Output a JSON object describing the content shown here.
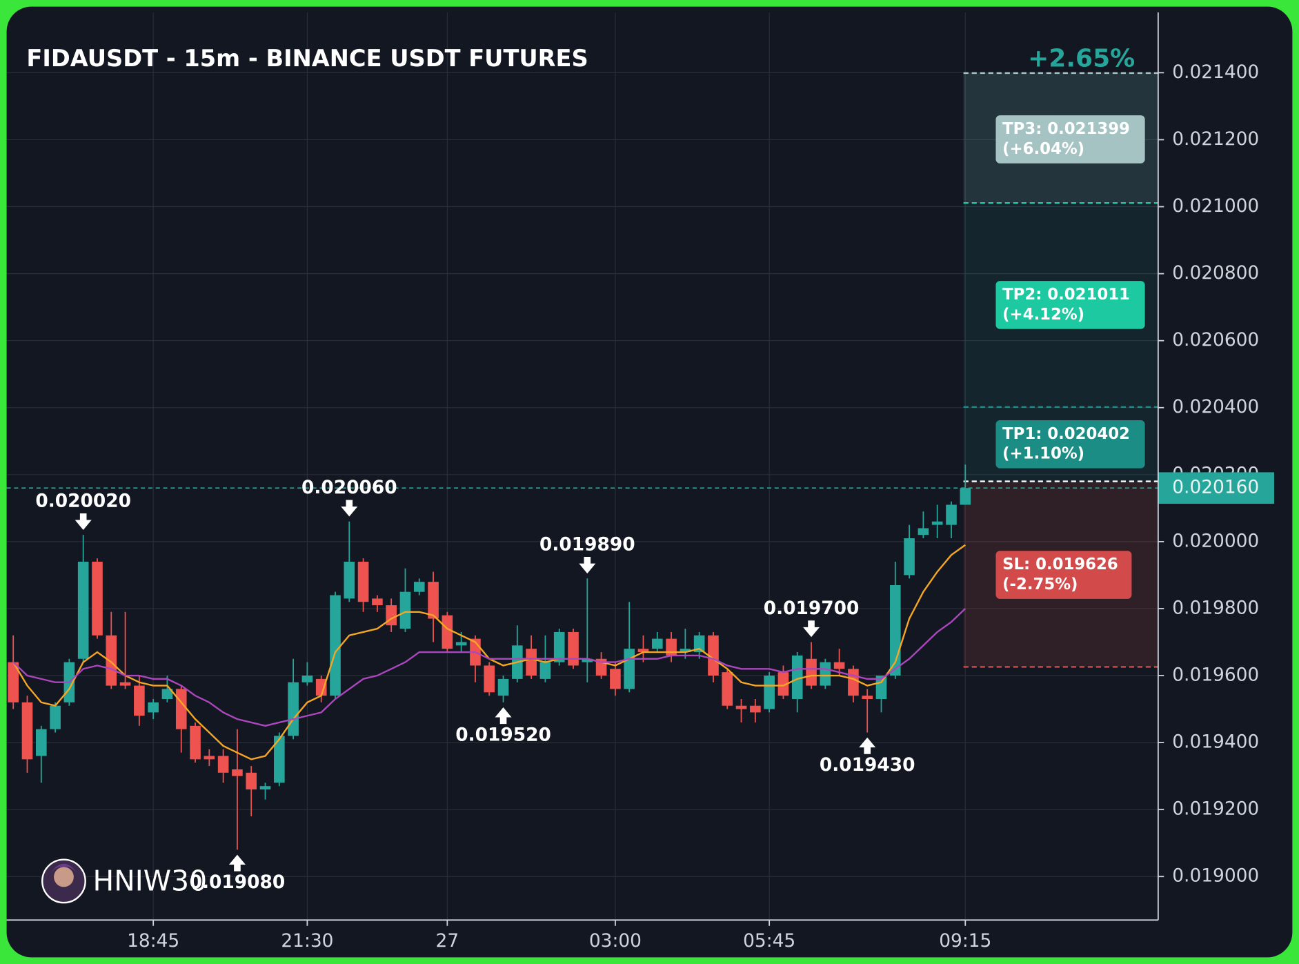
{
  "chart_data": {
    "type": "candlestick",
    "title": "FIDAUSDT - 15m - BINANCE USDT FUTURES",
    "performance": "+2.65%",
    "watermark": "HNIW30",
    "up_color": "#26a69a",
    "down_color": "#ef5350",
    "grid": true,
    "categories": [
      null,
      null,
      null,
      null,
      null,
      null,
      null,
      null,
      null,
      null,
      "18:45",
      null,
      null,
      null,
      null,
      null,
      null,
      null,
      null,
      null,
      null,
      "21:30",
      null,
      null,
      null,
      null,
      null,
      null,
      null,
      null,
      null,
      "27",
      null,
      null,
      null,
      null,
      null,
      null,
      null,
      null,
      null,
      null,
      null,
      "03:00",
      null,
      null,
      null,
      null,
      null,
      null,
      null,
      null,
      null,
      null,
      "05:45",
      null,
      null,
      null,
      null,
      null,
      null,
      null,
      null,
      null,
      null,
      null,
      null,
      null,
      "09:15"
    ],
    "open": [
      0.01964,
      0.01952,
      0.01936,
      0.01944,
      0.01952,
      0.01965,
      0.01994,
      0.01972,
      0.01958,
      0.01957,
      0.01949,
      0.01953,
      0.01956,
      0.01945,
      0.01936,
      0.01936,
      0.01932,
      0.01931,
      0.01926,
      0.01928,
      0.01942,
      0.01958,
      0.01959,
      0.01954,
      0.01983,
      0.01994,
      0.01983,
      0.01981,
      0.01974,
      0.01985,
      0.01988,
      0.01978,
      0.01969,
      0.01971,
      0.01963,
      0.01954,
      0.01959,
      0.01968,
      0.01959,
      0.01964,
      0.01973,
      0.01964,
      0.01965,
      0.01962,
      0.01956,
      0.01968,
      0.01968,
      0.01971,
      0.01967,
      0.01967,
      0.01972,
      0.01961,
      0.01951,
      0.01951,
      0.0195,
      0.01961,
      0.01953,
      0.01965,
      0.01957,
      0.01964,
      0.01962,
      0.01954,
      0.01953,
      0.0196,
      0.0199,
      0.02002,
      0.02005,
      0.02005,
      0.02011
    ],
    "high": [
      0.01972,
      0.01954,
      0.01945,
      0.01952,
      0.01965,
      0.02002,
      0.01995,
      0.01979,
      0.01979,
      0.0196,
      0.01953,
      0.0196,
      0.01957,
      0.01946,
      0.01938,
      0.01938,
      0.01944,
      0.01933,
      0.01928,
      0.01943,
      0.01965,
      0.01964,
      0.0196,
      0.01985,
      0.02006,
      0.01995,
      0.01984,
      0.01983,
      0.01992,
      0.01989,
      0.01991,
      0.01979,
      0.01973,
      0.01972,
      0.01964,
      0.0196,
      0.01975,
      0.01972,
      0.01972,
      0.01974,
      0.01974,
      0.01989,
      0.01967,
      0.01964,
      0.01982,
      0.01972,
      0.01973,
      0.01973,
      0.01974,
      0.01973,
      0.01973,
      0.01962,
      0.01953,
      0.01953,
      0.01961,
      0.01963,
      0.01967,
      0.0197,
      0.01965,
      0.01968,
      0.01963,
      0.01956,
      0.0196,
      0.01994,
      0.02005,
      0.02009,
      0.02011,
      0.02012,
      0.02023
    ],
    "low": [
      0.0195,
      0.01931,
      0.01928,
      0.01943,
      0.01951,
      0.01964,
      0.01971,
      0.01956,
      0.01956,
      0.01945,
      0.01947,
      0.01952,
      0.01937,
      0.01934,
      0.01933,
      0.01928,
      0.01908,
      0.01918,
      0.01923,
      0.01927,
      0.01941,
      0.01957,
      0.01952,
      0.01953,
      0.01982,
      0.01979,
      0.01979,
      0.01973,
      0.01973,
      0.01984,
      0.0197,
      0.01967,
      0.01967,
      0.01958,
      0.01954,
      0.01952,
      0.01958,
      0.01959,
      0.01958,
      0.01963,
      0.01962,
      0.01958,
      0.01959,
      0.01954,
      0.01955,
      0.01964,
      0.01967,
      0.01964,
      0.01965,
      0.01965,
      0.01958,
      0.0195,
      0.01946,
      0.01946,
      0.01949,
      0.01953,
      0.01949,
      0.01956,
      0.01956,
      0.0196,
      0.01952,
      0.01943,
      0.01949,
      0.01959,
      0.01989,
      0.02001,
      0.02001,
      0.02001,
      0.02011
    ],
    "close": [
      0.01952,
      0.01935,
      0.01944,
      0.01951,
      0.01964,
      0.01994,
      0.01972,
      0.01957,
      0.01957,
      0.01948,
      0.01952,
      0.01956,
      0.01944,
      0.01935,
      0.01935,
      0.01931,
      0.0193,
      0.01926,
      0.01927,
      0.01942,
      0.01958,
      0.0196,
      0.01954,
      0.01984,
      0.01994,
      0.01982,
      0.01981,
      0.01975,
      0.01985,
      0.01988,
      0.01977,
      0.01968,
      0.0197,
      0.01963,
      0.01955,
      0.01959,
      0.01969,
      0.0196,
      0.01964,
      0.01973,
      0.01963,
      0.01965,
      0.0196,
      0.01956,
      0.01968,
      0.01967,
      0.01971,
      0.01966,
      0.01968,
      0.01972,
      0.0196,
      0.01951,
      0.0195,
      0.01949,
      0.0196,
      0.01954,
      0.01966,
      0.01957,
      0.01964,
      0.01962,
      0.01954,
      0.01953,
      0.0196,
      0.01987,
      0.02001,
      0.02004,
      0.02006,
      0.02011,
      0.02016
    ],
    "lines": [
      {
        "color": "#f5a623",
        "values": [
          0.01964,
          0.01957,
          0.01952,
          0.01951,
          0.01956,
          0.01964,
          0.01967,
          0.01964,
          0.0196,
          0.01958,
          0.01957,
          0.01957,
          0.01952,
          0.01947,
          0.01943,
          0.01939,
          0.01937,
          0.01935,
          0.01936,
          0.01941,
          0.01947,
          0.01952,
          0.01954,
          0.01967,
          0.01972,
          0.01973,
          0.01974,
          0.01977,
          0.01979,
          0.01979,
          0.01978,
          0.01974,
          0.01972,
          0.0197,
          0.01965,
          0.01963,
          0.01964,
          0.01965,
          0.01964,
          0.01965,
          0.01965,
          0.01965,
          0.01964,
          0.01963,
          0.01965,
          0.01967,
          0.01967,
          0.01967,
          0.01967,
          0.01968,
          0.01965,
          0.01962,
          0.01958,
          0.01957,
          0.01957,
          0.01957,
          0.01959,
          0.0196,
          0.0196,
          0.0196,
          0.01959,
          0.01957,
          0.01958,
          0.01964,
          0.01977,
          0.01985,
          0.01991,
          0.01996,
          0.01999
        ]
      },
      {
        "color": "#ab47bc",
        "values": [
          0.01964,
          0.0196,
          0.01959,
          0.01958,
          0.01958,
          0.01962,
          0.01963,
          0.01962,
          0.0196,
          0.0196,
          0.01959,
          0.01959,
          0.01957,
          0.01954,
          0.01952,
          0.01949,
          0.01947,
          0.01946,
          0.01945,
          0.01946,
          0.01947,
          0.01948,
          0.01949,
          0.01953,
          0.01956,
          0.01959,
          0.0196,
          0.01962,
          0.01964,
          0.01967,
          0.01967,
          0.01967,
          0.01967,
          0.01967,
          0.01965,
          0.01965,
          0.01965,
          0.01965,
          0.01965,
          0.01965,
          0.01965,
          0.01965,
          0.01964,
          0.01964,
          0.01965,
          0.01965,
          0.01965,
          0.01966,
          0.01966,
          0.01966,
          0.01965,
          0.01963,
          0.01962,
          0.01962,
          0.01962,
          0.01961,
          0.01962,
          0.01962,
          0.01962,
          0.01961,
          0.0196,
          0.01959,
          0.01959,
          0.01962,
          0.01965,
          0.01969,
          0.01973,
          0.01976,
          0.0198
        ]
      }
    ],
    "ylim": [
      0.01887,
      0.02158
    ],
    "yticks": [
      {
        "value": 0.019,
        "label": "0.019000"
      },
      {
        "value": 0.0192,
        "label": "0.019200"
      },
      {
        "value": 0.0194,
        "label": "0.019400"
      },
      {
        "value": 0.0196,
        "label": "0.019600"
      },
      {
        "value": 0.0198,
        "label": "0.019800"
      },
      {
        "value": 0.02,
        "label": "0.020000"
      },
      {
        "value": 0.0202,
        "label": "0.020200"
      },
      {
        "value": 0.0204,
        "label": "0.020400"
      },
      {
        "value": 0.0206,
        "label": "0.020600"
      },
      {
        "value": 0.0208,
        "label": "0.020800"
      },
      {
        "value": 0.021,
        "label": "0.021000"
      },
      {
        "value": 0.0212,
        "label": "0.021200"
      },
      {
        "value": 0.0214,
        "label": "0.021400"
      }
    ],
    "last": {
      "value": 0.02016,
      "label": "0.020160",
      "color": "#26a69a"
    },
    "entry": 0.02018,
    "targets": [
      {
        "label": "TP3: 0.021399",
        "change": "(+6.04%)",
        "value": 0.021399,
        "color": "#a6c3c3"
      },
      {
        "label": "TP2: 0.021011",
        "change": "(+4.12%)",
        "value": 0.021011,
        "color": "#1dc9a0"
      },
      {
        "label": "TP1: 0.020402",
        "change": "(+1.10%)",
        "value": 0.020402,
        "color": "#1b8d84"
      }
    ],
    "stop": {
      "label": "SL: 0.019626",
      "change": "(-2.75%)",
      "value": 0.019626,
      "color": "#d24a4a"
    },
    "annotations": [
      {
        "candle": 5,
        "value": 0.02002,
        "label": "0.020020",
        "side": "high"
      },
      {
        "candle": 16,
        "value": 0.01908,
        "label": "0.019080",
        "side": "low"
      },
      {
        "candle": 24,
        "value": 0.02006,
        "label": "0.020060",
        "side": "high"
      },
      {
        "candle": 35,
        "value": 0.01952,
        "label": "0.019520",
        "side": "low"
      },
      {
        "candle": 41,
        "value": 0.01989,
        "label": "0.019890",
        "side": "high"
      },
      {
        "candle": 57,
        "value": 0.0197,
        "label": "0.019700",
        "side": "high"
      },
      {
        "candle": 61,
        "value": 0.01943,
        "label": "0.019430",
        "side": "low"
      }
    ]
  }
}
